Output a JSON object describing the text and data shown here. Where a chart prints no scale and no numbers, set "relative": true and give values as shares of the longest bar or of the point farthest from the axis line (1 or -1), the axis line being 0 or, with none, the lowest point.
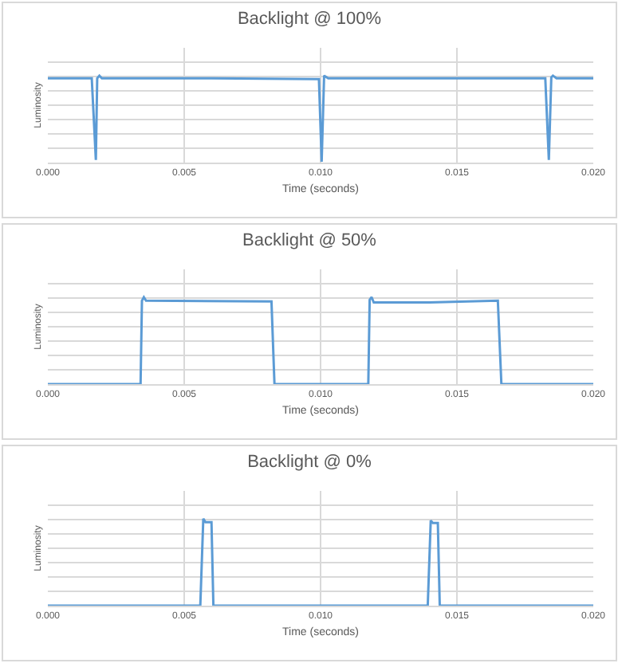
{
  "chart_data": [
    {
      "type": "line",
      "title": "Backlight @ 100%",
      "xlabel": "Time (seconds)",
      "ylabel": "Luminosity",
      "relative": true,
      "grid": true,
      "xlim": [
        0,
        0.02
      ],
      "xticks": [
        {
          "value": 0,
          "label": "0.000"
        },
        {
          "value": 0.005,
          "label": "0.005"
        },
        {
          "value": 0.01,
          "label": "0.010"
        },
        {
          "value": 0.015,
          "label": "0.015"
        },
        {
          "value": 0.02,
          "label": "0.020"
        }
      ],
      "series": [
        {
          "color": "#5b9bd5",
          "x": [
            0,
            0.00161,
            0.00176,
            0.00181,
            0.00189,
            0.00198,
            0.006,
            0.00994,
            0.01004,
            0.01013,
            0.01028,
            0.014,
            0.01824,
            0.01837,
            0.01846,
            0.01852,
            0.01865,
            0.02
          ],
          "values": [
            0.97,
            0.97,
            0.03,
            0.97,
            1.0,
            0.97,
            0.97,
            0.96,
            0.01,
            1.0,
            0.97,
            0.97,
            0.97,
            0.03,
            0.98,
            1.0,
            0.97,
            0.97
          ]
        }
      ]
    },
    {
      "type": "line",
      "title": "Backlight @ 50%",
      "xlabel": "Time (seconds)",
      "ylabel": "Luminosity",
      "relative": true,
      "grid": true,
      "xlim": [
        0,
        0.02
      ],
      "xticks": [
        {
          "value": 0,
          "label": "0.000"
        },
        {
          "value": 0.005,
          "label": "0.005"
        },
        {
          "value": 0.01,
          "label": "0.010"
        },
        {
          "value": 0.015,
          "label": "0.015"
        },
        {
          "value": 0.02,
          "label": "0.020"
        }
      ],
      "series": [
        {
          "color": "#5b9bd5",
          "x": [
            0,
            0.0034,
            0.00345,
            0.00352,
            0.0036,
            0.0082,
            0.00831,
            0.01175,
            0.0118,
            0.01187,
            0.01195,
            0.014,
            0.0165,
            0.01663,
            0.02
          ],
          "values": [
            0,
            0,
            0.96,
            1.0,
            0.96,
            0.95,
            0,
            0,
            0.97,
            1.0,
            0.94,
            0.94,
            0.96,
            0,
            0
          ]
        }
      ]
    },
    {
      "type": "line",
      "title": "Backlight @ 0%",
      "xlabel": "Time (seconds)",
      "ylabel": "Luminosity",
      "relative": true,
      "grid": true,
      "xlim": [
        0,
        0.02
      ],
      "xticks": [
        {
          "value": 0,
          "label": "0.000"
        },
        {
          "value": 0.005,
          "label": "0.005"
        },
        {
          "value": 0.01,
          "label": "0.010"
        },
        {
          "value": 0.015,
          "label": "0.015"
        },
        {
          "value": 0.02,
          "label": "0.020"
        }
      ],
      "series": [
        {
          "color": "#5b9bd5",
          "x": [
            0,
            0.00559,
            0.0057,
            0.00578,
            0.006,
            0.00607,
            0.01393,
            0.01404,
            0.01412,
            0.0143,
            0.01437,
            0.02
          ],
          "values": [
            0,
            0,
            1.0,
            0.96,
            0.96,
            0,
            0,
            0.98,
            0.95,
            0.95,
            0,
            0
          ]
        }
      ]
    }
  ]
}
